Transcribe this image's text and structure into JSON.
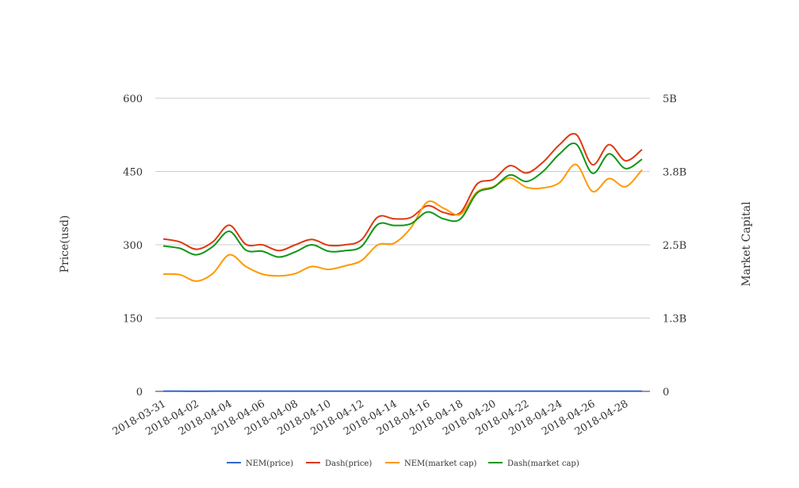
{
  "chart_data": {
    "type": "line",
    "title": "",
    "ylabel": "Price(usd)",
    "y2label": "Market Capital",
    "ylim": [
      0,
      600
    ],
    "y2lim": [
      0,
      5000000000
    ],
    "yticks": [
      0,
      150,
      300,
      450,
      600
    ],
    "y2ticks": [
      0,
      1250000000,
      2500000000,
      3750000000,
      5000000000
    ],
    "y2tick_labels": [
      "0",
      "1.3B",
      "2.5B",
      "3.8B",
      "5B"
    ],
    "grid": true,
    "legend_position": "bottom",
    "x": [
      "2018-03-31",
      "2018-04-01",
      "2018-04-02",
      "2018-04-03",
      "2018-04-04",
      "2018-04-05",
      "2018-04-06",
      "2018-04-07",
      "2018-04-08",
      "2018-04-09",
      "2018-04-10",
      "2018-04-11",
      "2018-04-12",
      "2018-04-13",
      "2018-04-14",
      "2018-04-15",
      "2018-04-16",
      "2018-04-17",
      "2018-04-18",
      "2018-04-19",
      "2018-04-20",
      "2018-04-21",
      "2018-04-22",
      "2018-04-23",
      "2018-04-24",
      "2018-04-25",
      "2018-04-26",
      "2018-04-27",
      "2018-04-28",
      "2018-04-29"
    ],
    "xtick_labels": [
      "2018-03-31",
      "2018-04-02",
      "2018-04-04",
      "2018-04-06",
      "2018-04-08",
      "2018-04-10",
      "2018-04-12",
      "2018-04-14",
      "2018-04-16",
      "2018-04-18",
      "2018-04-20",
      "2018-04-22",
      "2018-04-24",
      "2018-04-26",
      "2018-04-28"
    ],
    "series": [
      {
        "name": "NEM(price)",
        "axis": "left",
        "color": "#3366cc",
        "values": [
          0.26,
          0.26,
          0.24,
          0.25,
          0.29,
          0.26,
          0.25,
          0.25,
          0.26,
          0.26,
          0.26,
          0.27,
          0.29,
          0.29,
          0.33,
          0.39,
          0.37,
          0.36,
          0.41,
          0.43,
          0.43,
          0.41,
          0.42,
          0.44,
          0.47,
          0.4,
          0.43,
          0.42,
          0.45,
          0.46
        ]
      },
      {
        "name": "Dash(price)",
        "axis": "left",
        "color": "#dc3912",
        "values": [
          312,
          306,
          291,
          306,
          340,
          301,
          300,
          288,
          300,
          311,
          299,
          300,
          310,
          357,
          353,
          356,
          380,
          366,
          366,
          424,
          434,
          462,
          447,
          469,
          505,
          526,
          464,
          505,
          472,
          495
        ]
      },
      {
        "name": "NEM(market cap)",
        "axis": "right",
        "color": "#ff9900",
        "values": [
          2000000000,
          1990000000,
          1880000000,
          2010000000,
          2330000000,
          2130000000,
          2000000000,
          1970000000,
          2010000000,
          2130000000,
          2080000000,
          2140000000,
          2230000000,
          2500000000,
          2530000000,
          2790000000,
          3230000000,
          3120000000,
          3020000000,
          3400000000,
          3490000000,
          3640000000,
          3480000000,
          3470000000,
          3560000000,
          3870000000,
          3410000000,
          3630000000,
          3490000000,
          3780000000
        ]
      },
      {
        "name": "Dash(market cap)",
        "axis": "right",
        "color": "#109618",
        "values": [
          2480000000,
          2440000000,
          2330000000,
          2470000000,
          2730000000,
          2410000000,
          2390000000,
          2290000000,
          2380000000,
          2500000000,
          2390000000,
          2400000000,
          2470000000,
          2850000000,
          2830000000,
          2860000000,
          3060000000,
          2940000000,
          2940000000,
          3380000000,
          3480000000,
          3690000000,
          3580000000,
          3750000000,
          4050000000,
          4220000000,
          3720000000,
          4050000000,
          3800000000,
          3960000000
        ]
      }
    ]
  }
}
